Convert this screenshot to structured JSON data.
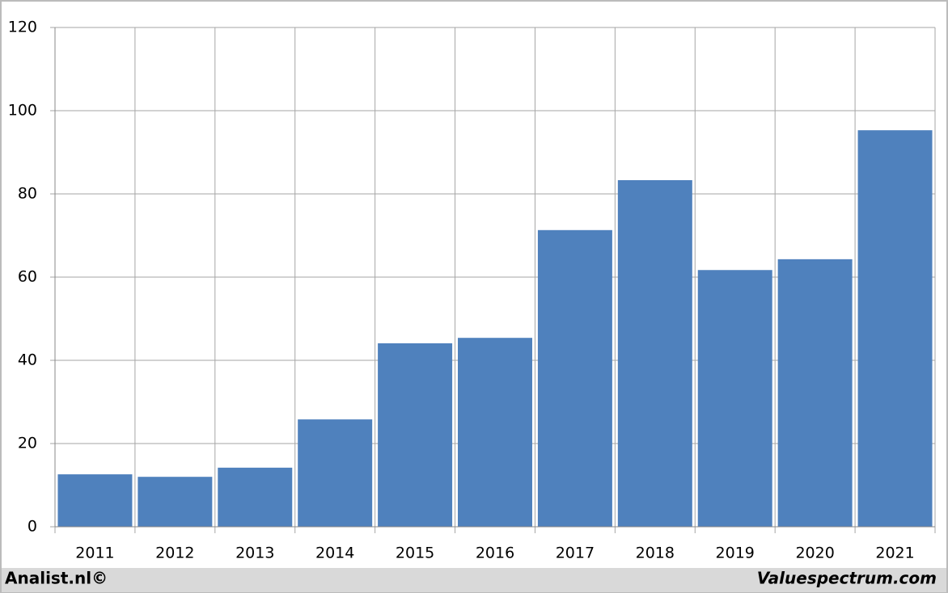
{
  "chart_data": {
    "type": "bar",
    "categories": [
      "2011",
      "2012",
      "2013",
      "2014",
      "2015",
      "2016",
      "2017",
      "2018",
      "2019",
      "2020",
      "2021"
    ],
    "values": [
      12.6,
      12.0,
      14.2,
      25.8,
      44.1,
      45.4,
      71.3,
      83.3,
      61.7,
      64.3,
      95.3
    ],
    "color": "#4f81bd",
    "ylim": [
      0,
      120
    ],
    "yticks": [
      0,
      20,
      40,
      60,
      80,
      100,
      120
    ],
    "grid": true,
    "source_left": "Analist.nl©",
    "source_right": "Valuespectrum.com"
  }
}
